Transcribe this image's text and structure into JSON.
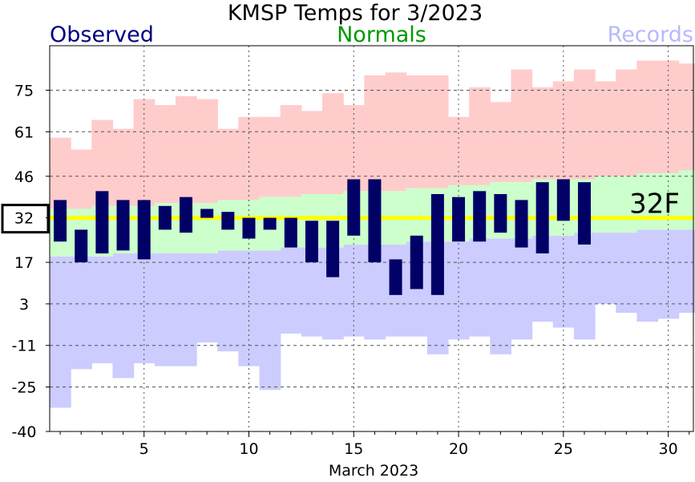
{
  "chart_data": {
    "type": "bar",
    "title": "KMSP Temps for 3/2023",
    "xlabel": "March 2023",
    "ylabel": "",
    "ylim": [
      -40,
      90
    ],
    "xlim": [
      0.5,
      31.2
    ],
    "yticks": [
      -40,
      -25,
      -11,
      3,
      17,
      32,
      46,
      61,
      75
    ],
    "xticks": [
      5,
      10,
      15,
      20,
      25,
      30
    ],
    "grid": true,
    "legend": [
      {
        "name": "Observed",
        "color": "#000080"
      },
      {
        "name": "Normals",
        "color": "#009900"
      },
      {
        "name": "Records",
        "color": "#b8b8ff"
      }
    ],
    "highlighted_tick": 32,
    "freeze_line": {
      "value": 32,
      "label": "32F",
      "color": "#ffff00"
    },
    "days": [
      1,
      2,
      3,
      4,
      5,
      6,
      7,
      8,
      9,
      10,
      11,
      12,
      13,
      14,
      15,
      16,
      17,
      18,
      19,
      20,
      21,
      22,
      23,
      24,
      25,
      26,
      27,
      28,
      29,
      30,
      31
    ],
    "record_high": [
      59,
      55,
      65,
      62,
      72,
      70,
      73,
      72,
      62,
      66,
      66,
      70,
      68,
      74,
      70,
      80,
      81,
      80,
      80,
      66,
      76,
      71,
      82,
      76,
      78,
      82,
      78,
      82,
      85,
      85,
      84
    ],
    "record_low": [
      -32,
      -19,
      -17,
      -22,
      -17,
      -18,
      -18,
      -10,
      -13,
      -18,
      -26,
      -7,
      -8,
      -9,
      -8,
      -9,
      -8,
      -8,
      -14,
      -9,
      -8,
      -14,
      -9,
      -3,
      -5,
      -9,
      3,
      0,
      -3,
      -2,
      0
    ],
    "normal_high": [
      35,
      35,
      36,
      36,
      36,
      37,
      37,
      37,
      38,
      38,
      39,
      39,
      40,
      40,
      41,
      41,
      41,
      42,
      42,
      43,
      43,
      44,
      44,
      45,
      45,
      45,
      46,
      46,
      47,
      47,
      48
    ],
    "normal_low": [
      19,
      19,
      19,
      20,
      20,
      20,
      20,
      20,
      21,
      21,
      21,
      22,
      22,
      22,
      23,
      23,
      23,
      24,
      24,
      24,
      25,
      25,
      25,
      26,
      26,
      27,
      27,
      27,
      28,
      28,
      28
    ],
    "observed": [
      {
        "day": 1,
        "high": 38,
        "low": 24
      },
      {
        "day": 2,
        "high": 28,
        "low": 17
      },
      {
        "day": 3,
        "high": 41,
        "low": 20
      },
      {
        "day": 4,
        "high": 38,
        "low": 21
      },
      {
        "day": 5,
        "high": 38,
        "low": 18
      },
      {
        "day": 6,
        "high": 36,
        "low": 28
      },
      {
        "day": 7,
        "high": 39,
        "low": 27
      },
      {
        "day": 8,
        "high": 35,
        "low": 32
      },
      {
        "day": 9,
        "high": 34,
        "low": 28
      },
      {
        "day": 10,
        "high": 32,
        "low": 25
      },
      {
        "day": 11,
        "high": 32,
        "low": 28
      },
      {
        "day": 12,
        "high": 32,
        "low": 22
      },
      {
        "day": 13,
        "high": 31,
        "low": 17
      },
      {
        "day": 14,
        "high": 31,
        "low": 12
      },
      {
        "day": 15,
        "high": 45,
        "low": 26
      },
      {
        "day": 16,
        "high": 45,
        "low": 17
      },
      {
        "day": 17,
        "high": 18,
        "low": 6
      },
      {
        "day": 18,
        "high": 26,
        "low": 8
      },
      {
        "day": 19,
        "high": 40,
        "low": 6
      },
      {
        "day": 20,
        "high": 39,
        "low": 24
      },
      {
        "day": 21,
        "high": 41,
        "low": 24
      },
      {
        "day": 22,
        "high": 40,
        "low": 27
      },
      {
        "day": 23,
        "high": 38,
        "low": 22
      },
      {
        "day": 24,
        "high": 44,
        "low": 20
      },
      {
        "day": 25,
        "high": 45,
        "low": 31
      },
      {
        "day": 26,
        "high": 44,
        "low": 23
      }
    ]
  }
}
